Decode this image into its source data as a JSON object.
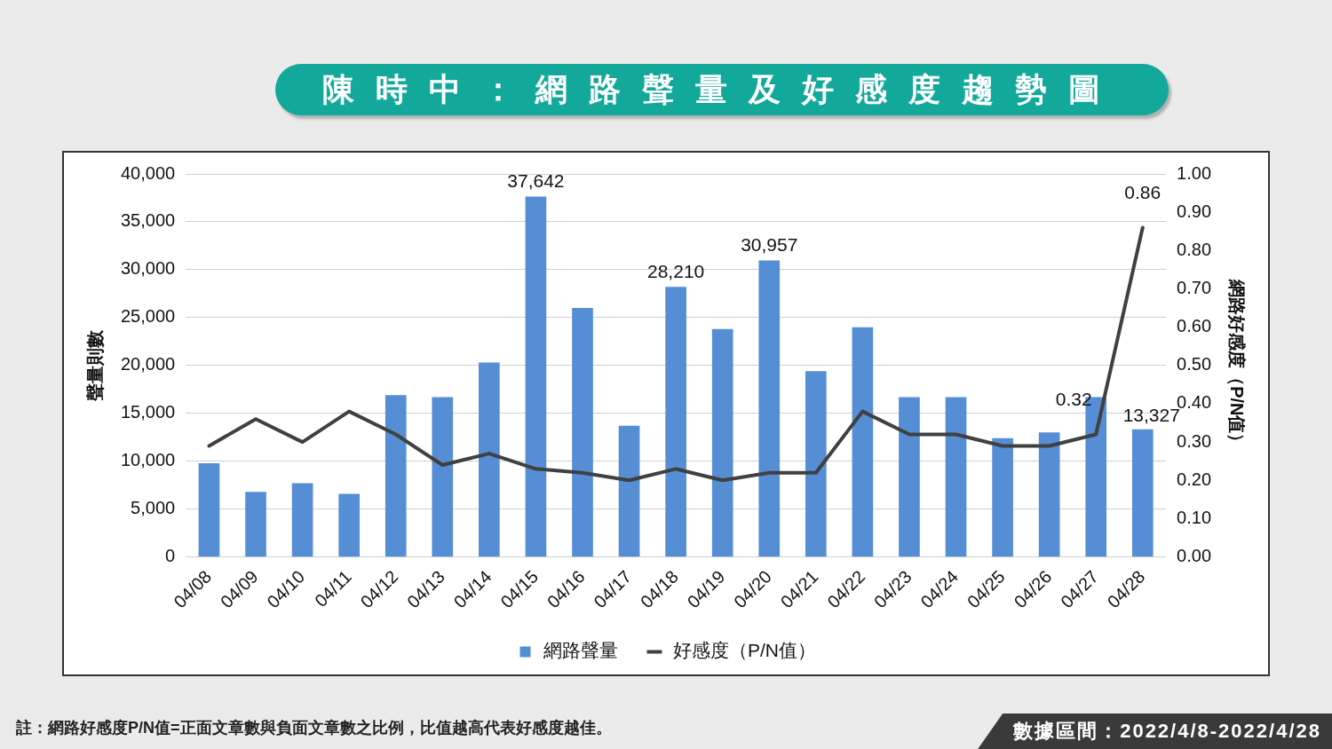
{
  "chart_data": {
    "type": "bar",
    "title": "陳時中：網路聲量及好感度趨勢圖",
    "categories": [
      "04/08",
      "04/09",
      "04/10",
      "04/11",
      "04/12",
      "04/13",
      "04/14",
      "04/15",
      "04/16",
      "04/17",
      "04/18",
      "04/19",
      "04/20",
      "04/21",
      "04/22",
      "04/23",
      "04/24",
      "04/25",
      "04/26",
      "04/27",
      "04/28"
    ],
    "series": [
      {
        "name": "網路聲量",
        "color": "#558ed5",
        "values": [
          9800,
          6800,
          7700,
          6600,
          16900,
          16700,
          20300,
          37642,
          26000,
          13700,
          28210,
          23800,
          30957,
          19400,
          24000,
          16700,
          16700,
          12400,
          13000,
          16700,
          13327
        ],
        "value_labels": [
          null,
          null,
          null,
          null,
          null,
          null,
          null,
          "37,642",
          null,
          null,
          "28,210",
          null,
          "30,957",
          null,
          null,
          null,
          null,
          null,
          null,
          null,
          "13,327"
        ]
      },
      {
        "name": "好感度（P/N值）",
        "type": "line",
        "axis": "y2",
        "color": "#404040",
        "values": [
          0.29,
          0.36,
          0.3,
          0.38,
          0.32,
          0.24,
          0.27,
          0.23,
          0.22,
          0.2,
          0.23,
          0.2,
          0.22,
          0.22,
          0.38,
          0.32,
          0.32,
          0.29,
          0.29,
          0.32,
          0.86
        ],
        "value_labels": [
          null,
          null,
          null,
          null,
          null,
          null,
          null,
          null,
          null,
          null,
          null,
          null,
          null,
          null,
          null,
          null,
          null,
          null,
          null,
          "0.32",
          "0.86"
        ]
      }
    ],
    "ylabel": "聲量則數",
    "y2label": "網路好感度（P/N值）",
    "ylim": [
      0,
      40000
    ],
    "yticks": [
      {
        "value": 0,
        "label": "0"
      },
      {
        "value": 5000,
        "label": "5,000"
      },
      {
        "value": 10000,
        "label": "10,000"
      },
      {
        "value": 15000,
        "label": "15,000"
      },
      {
        "value": 20000,
        "label": "20,000"
      },
      {
        "value": 25000,
        "label": "25,000"
      },
      {
        "value": 30000,
        "label": "30,000"
      },
      {
        "value": 35000,
        "label": "35,000"
      },
      {
        "value": 40000,
        "label": "40,000"
      }
    ],
    "y2lim": [
      0,
      1
    ],
    "y2ticks": [
      {
        "value": 0,
        "label": "0.00"
      },
      {
        "value": 0.1,
        "label": "0.10"
      },
      {
        "value": 0.2,
        "label": "0.20"
      },
      {
        "value": 0.3,
        "label": "0.30"
      },
      {
        "value": 0.4,
        "label": "0.40"
      },
      {
        "value": 0.5,
        "label": "0.50"
      },
      {
        "value": 0.6,
        "label": "0.60"
      },
      {
        "value": 0.7,
        "label": "0.70"
      },
      {
        "value": 0.8,
        "label": "0.80"
      },
      {
        "value": 0.9,
        "label": "0.90"
      },
      {
        "value": 1,
        "label": "1.00"
      }
    ],
    "grid": "y",
    "legend": "bottom",
    "annotations": [
      "註：網路好感度P/N值=正面文章數與負面文章數之比例，比值越高代表好感度越佳。",
      "數據區間：2022/4/8-2022/4/28"
    ]
  }
}
